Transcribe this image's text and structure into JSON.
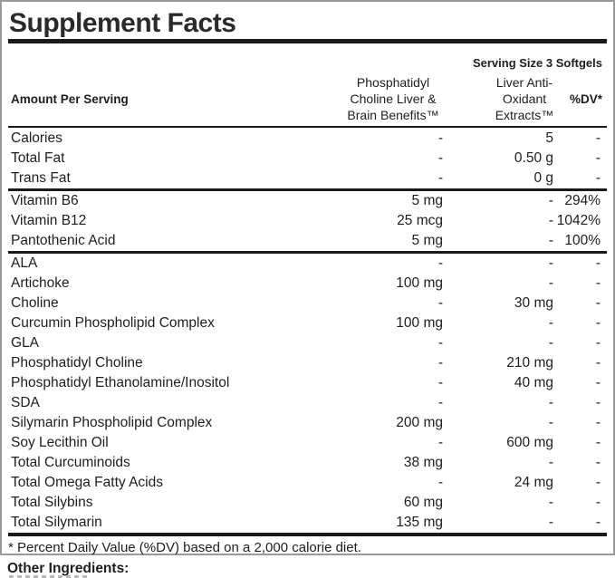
{
  "title": "Supplement Facts",
  "serving_size": "Serving Size 3 Softgels",
  "header": {
    "amount_per_serving": "Amount Per Serving",
    "col2_lines": [
      "Phosphatidyl",
      "Choline Liver &",
      "Brain Benefits™"
    ],
    "col3_lines": [
      "Liver Anti-",
      "Oxidant",
      "Extracts™"
    ],
    "dv_label": "%DV*"
  },
  "table": {
    "groups": [
      {
        "rows": [
          {
            "label": "Calories",
            "col2": "-",
            "col3": "5",
            "dv": "-"
          },
          {
            "label": "Total Fat",
            "col2": "-",
            "col3": "0.50 g",
            "dv": "-"
          },
          {
            "label": "Trans Fat",
            "col2": "-",
            "col3": "0 g",
            "dv": "-"
          }
        ]
      },
      {
        "rows": [
          {
            "label": "Vitamin B6",
            "col2": "5 mg",
            "col3": "-",
            "dv": "294%"
          },
          {
            "label": "Vitamin B12",
            "col2": "25 mcg",
            "col3": "-",
            "dv": "1042%"
          },
          {
            "label": "Pantothenic Acid",
            "col2": "5 mg",
            "col3": "-",
            "dv": "100%"
          }
        ]
      },
      {
        "rows": [
          {
            "label": "ALA",
            "col2": "-",
            "col3": "-",
            "dv": "-"
          },
          {
            "label": "Artichoke",
            "col2": "100 mg",
            "col3": "-",
            "dv": "-"
          },
          {
            "label": "Choline",
            "col2": "-",
            "col3": "30 mg",
            "dv": "-"
          },
          {
            "label": "Curcumin Phospholipid Complex",
            "col2": "100 mg",
            "col3": "-",
            "dv": "-"
          },
          {
            "label": "GLA",
            "col2": "-",
            "col3": "-",
            "dv": "-"
          },
          {
            "label": "Phosphatidyl Choline",
            "col2": "-",
            "col3": "210 mg",
            "dv": "-"
          },
          {
            "label": "Phosphatidyl Ethanolamine/Inositol",
            "col2": "-",
            "col3": "40 mg",
            "dv": "-"
          },
          {
            "label": "SDA",
            "col2": "-",
            "col3": "-",
            "dv": "-"
          },
          {
            "label": "Silymarin Phospholipid Complex",
            "col2": "200 mg",
            "col3": "-",
            "dv": "-"
          },
          {
            "label": "Soy Lecithin Oil",
            "col2": "-",
            "col3": "600 mg",
            "dv": "-"
          },
          {
            "label": "Total Curcuminoids",
            "col2": "38 mg",
            "col3": "-",
            "dv": "-"
          },
          {
            "label": "Total Omega Fatty Acids",
            "col2": "-",
            "col3": "24 mg",
            "dv": "-"
          },
          {
            "label": "Total Silybins",
            "col2": "60 mg",
            "col3": "-",
            "dv": "-"
          },
          {
            "label": "Total Silymarin",
            "col2": "135 mg",
            "col3": "-",
            "dv": "-"
          }
        ]
      }
    ]
  },
  "footnote": "* Percent Daily Value (%DV) based on a 2,000 calorie diet.",
  "other_ingredients_label": "Other Ingredients:",
  "colors": {
    "text": "#1e1e1e",
    "rule": "#1a1a1a",
    "border": "#9a9a9a"
  }
}
